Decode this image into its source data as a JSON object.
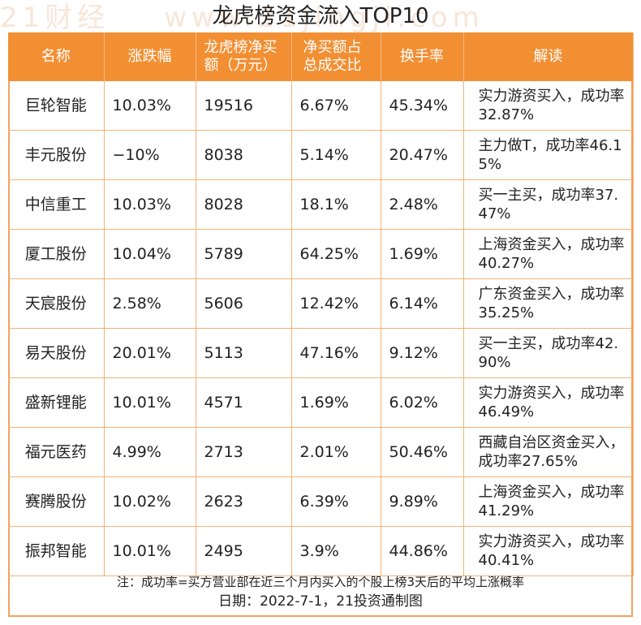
{
  "title": "龙虎榜资金流入TOP10",
  "watermark": [
    "21财经",
    "www.21jingji.com"
  ],
  "colors": {
    "header_bg": "#f28f33",
    "border": "#f0b27a"
  },
  "headers": [
    "名称",
    "涨跌幅",
    "龙虎榜净买额（万元）",
    "净买额占总成交比",
    "换手率",
    "解读"
  ],
  "chart_data": {
    "type": "table",
    "title": "龙虎榜资金流入TOP10",
    "columns": [
      "名称",
      "涨跌幅",
      "龙虎榜净买额（万元）",
      "净买额占总成交比",
      "换手率",
      "解读"
    ],
    "rows": [
      [
        "巨轮智能",
        "10.03%",
        "19516",
        "6.67%",
        "45.34%",
        "实力游资买入，成功率32.87%"
      ],
      [
        "丰元股份",
        "−10%",
        "8038",
        "5.14%",
        "20.47%",
        "主力做T，成功率46.15%"
      ],
      [
        "中信重工",
        "10.03%",
        "8028",
        "18.1%",
        "2.48%",
        "买一主买，成功率37.47%"
      ],
      [
        "厦工股份",
        "10.04%",
        "5789",
        "64.25%",
        "1.69%",
        "上海资金买入，成功率40.27%"
      ],
      [
        "天宸股份",
        "2.58%",
        "5606",
        "12.42%",
        "6.14%",
        "广东资金买入，成功率35.25%"
      ],
      [
        "易天股份",
        "20.01%",
        "5113",
        "47.16%",
        "9.12%",
        "买一主买，成功率42.90%"
      ],
      [
        "盛新锂能",
        "10.01%",
        "4571",
        "1.69%",
        "6.02%",
        "实力游资买入，成功率46.49%"
      ],
      [
        "福元医药",
        "4.99%",
        "2713",
        "2.01%",
        "50.46%",
        "西藏自治区资金买入，成功率27.65%"
      ],
      [
        "赛腾股份",
        "10.02%",
        "2623",
        "6.39%",
        "9.89%",
        "上海资金买入，成功率41.29%"
      ],
      [
        "振邦智能",
        "10.01%",
        "2495",
        "3.9%",
        "44.86%",
        "实力游资买入，成功率40.41%"
      ]
    ]
  },
  "footer": {
    "note": "注：成功率=买方营业部在近三个月内买入的个股上榜3天后的平均上涨概率",
    "date": "日期：2022-7-1，21投资通制图"
  }
}
